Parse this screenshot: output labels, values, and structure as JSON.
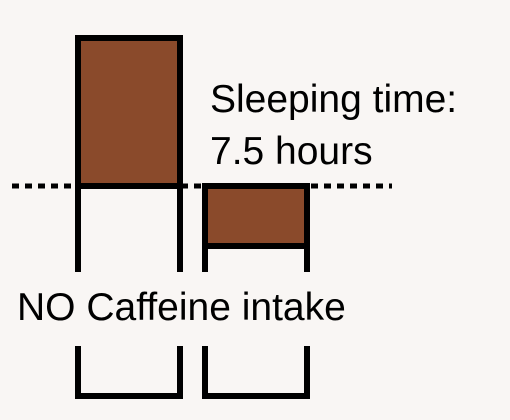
{
  "colors": {
    "background": "#f9f6f4",
    "fill": "#8a4a2b",
    "stroke": "#000000"
  },
  "labels": {
    "sleeping_time_line1": "Sleeping time:",
    "sleeping_time_line2": "7.5 hours",
    "no_caffeine": "NO Caffeine intake"
  }
}
